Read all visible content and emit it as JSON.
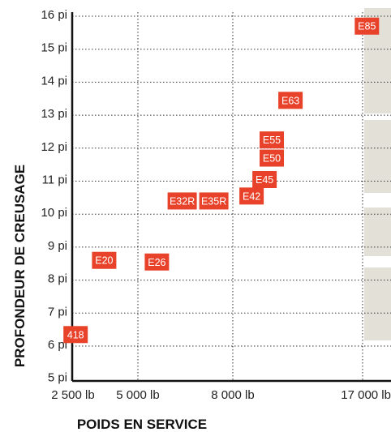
{
  "chart_data": {
    "type": "scatter",
    "xlabel": "POIDS EN SERVICE",
    "ylabel": "PROFONDEUR DE CREUSAGE",
    "x_ticks": [
      "2 500 lb",
      "5 000 lb",
      "8 000 lb",
      "17 000 lb"
    ],
    "y_ticks": [
      "5 pi",
      "6 pi",
      "7 pi",
      "8 pi",
      "9 pi",
      "10 pi",
      "11 pi",
      "12 pi",
      "13 pi",
      "14 pi",
      "15 pi",
      "16 pi"
    ],
    "ylim": [
      5,
      16
    ],
    "grid": true,
    "marker_color": "#e8432a",
    "watermark_color": "#e3e0d8",
    "points": [
      {
        "label": "418",
        "weight_lb": 2600,
        "depth_ft": 6.3
      },
      {
        "label": "E20",
        "weight_lb": 3700,
        "depth_ft": 8.55
      },
      {
        "label": "E26",
        "weight_lb": 5600,
        "depth_ft": 8.5
      },
      {
        "label": "E32R",
        "weight_lb": 6400,
        "depth_ft": 10.35
      },
      {
        "label": "E35R",
        "weight_lb": 7400,
        "depth_ft": 10.35
      },
      {
        "label": "E42",
        "weight_lb": 9300,
        "depth_ft": 10.5
      },
      {
        "label": "E45",
        "weight_lb": 10200,
        "depth_ft": 11.0
      },
      {
        "label": "E50",
        "weight_lb": 10700,
        "depth_ft": 11.65
      },
      {
        "label": "E55",
        "weight_lb": 10700,
        "depth_ft": 12.2
      },
      {
        "label": "E63",
        "weight_lb": 12000,
        "depth_ft": 13.4
      },
      {
        "label": "E85",
        "weight_lb": 17300,
        "depth_ft": 15.65
      }
    ]
  }
}
